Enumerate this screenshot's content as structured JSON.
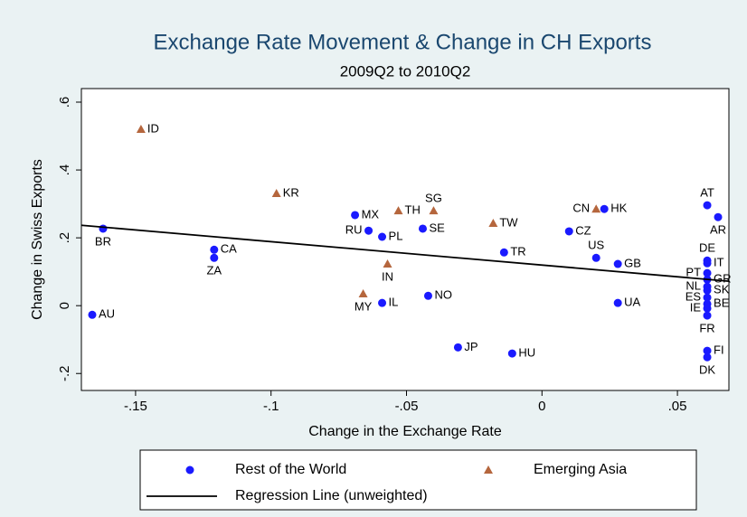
{
  "chart_data": {
    "type": "scatter",
    "title": "Exchange Rate Movement & Change in CH Exports",
    "subtitle": "2009Q2 to 2010Q2",
    "x_label": "Change in the Exchange Rate",
    "y_label": "Change in Swiss Exports",
    "xlim": [
      -0.17,
      0.069
    ],
    "ylim": [
      -0.25,
      0.64
    ],
    "xticks": [
      {
        "value": -0.15,
        "label": "-.15"
      },
      {
        "value": -0.1,
        "label": "-.1"
      },
      {
        "value": -0.05,
        "label": "-.05"
      },
      0,
      {
        "value": 0.05,
        "label": ".05"
      }
    ],
    "yticks": [
      {
        "value": -0.2,
        "label": "-.2"
      },
      0,
      {
        "value": 0.2,
        "label": ".2"
      },
      {
        "value": 0.4,
        "label": ".4"
      },
      {
        "value": 0.6,
        "label": ".6"
      }
    ],
    "grid": false,
    "series": [
      {
        "name": "Rest of the World",
        "color": "#1a1aff",
        "marker": "circle",
        "labels": [
          "AU",
          "BR",
          "CA",
          "ZA",
          "MX",
          "RU",
          "PL",
          "IL",
          "SE",
          "NO",
          "JP",
          "HU",
          "TR",
          "CZ",
          "HK",
          "US",
          "GB",
          "UA",
          "AT",
          "AR",
          "DE",
          "IT",
          "PT",
          "GR",
          "NL",
          "SK",
          "ES",
          "BE",
          "IE",
          "FR",
          "FI",
          "DK"
        ],
        "x": [
          -0.166,
          -0.162,
          -0.121,
          -0.121,
          -0.069,
          -0.064,
          -0.059,
          -0.059,
          -0.044,
          -0.042,
          -0.031,
          -0.011,
          -0.014,
          0.01,
          0.023,
          0.02,
          0.028,
          0.028,
          0.061,
          0.065,
          0.061,
          0.061,
          0.061,
          0.061,
          0.061,
          0.061,
          0.061,
          0.061,
          0.061,
          0.061,
          0.061,
          0.061
        ],
        "values": [
          -0.027,
          0.227,
          0.165,
          0.141,
          0.267,
          0.221,
          0.203,
          0.008,
          0.227,
          0.029,
          -0.123,
          -0.141,
          0.157,
          0.219,
          0.285,
          0.141,
          0.123,
          0.008,
          0.296,
          0.261,
          0.133,
          0.125,
          0.096,
          0.077,
          0.056,
          0.045,
          0.024,
          0.005,
          -0.008,
          -0.029,
          -0.133,
          -0.152
        ]
      },
      {
        "name": "Emerging Asia",
        "color": "#b5663d",
        "marker": "triangle",
        "labels": [
          "ID",
          "KR",
          "TH",
          "SG",
          "TW",
          "CN",
          "IN",
          "MY"
        ],
        "x": [
          -0.148,
          -0.098,
          -0.053,
          -0.04,
          -0.018,
          0.02,
          -0.057,
          -0.066
        ],
        "values": [
          0.52,
          0.331,
          0.28,
          0.28,
          0.243,
          0.285,
          0.123,
          0.035
        ]
      },
      {
        "name": "Regression Line (unweighted)",
        "color": "#000000",
        "marker": "line",
        "x": [
          -0.17,
          0.069
        ],
        "values": [
          0.237,
          0.072
        ]
      }
    ]
  }
}
